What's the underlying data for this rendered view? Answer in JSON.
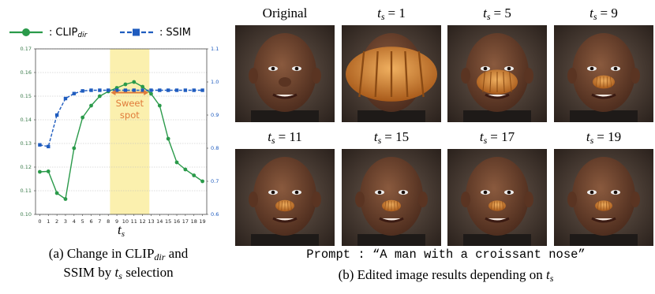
{
  "chart_data": {
    "type": "line",
    "x": [
      0,
      1,
      2,
      3,
      4,
      5,
      6,
      7,
      8,
      9,
      10,
      11,
      12,
      13,
      14,
      15,
      16,
      17,
      18,
      19
    ],
    "xlim": [
      -0.5,
      19.5
    ],
    "xticks": [
      0,
      1,
      2,
      3,
      4,
      5,
      6,
      7,
      8,
      9,
      10,
      11,
      12,
      13,
      14,
      15,
      16,
      17,
      18,
      19
    ],
    "x_label": "t",
    "x_label_subscript": "s",
    "ylim": [
      0.1,
      0.17
    ],
    "yticks": [
      {
        "value": 0.1,
        "label": "0.10"
      },
      0.11,
      0.12,
      0.13,
      0.14,
      0.15,
      0.16,
      0.17
    ],
    "y2lim": [
      0.6,
      1.1
    ],
    "y2ticks": [
      0.6,
      0.7,
      0.8,
      0.9,
      {
        "value": 1.0,
        "label": "1.0"
      },
      1.1
    ],
    "grid": true,
    "legend_prefix": ":",
    "series": [
      {
        "name": "CLIP",
        "name_subscript": "dir",
        "color": "#2a9a4a",
        "marker": "circle",
        "dashed": false,
        "values": [
          0.118,
          0.1182,
          0.109,
          0.1065,
          0.128,
          0.141,
          0.146,
          0.15,
          0.152,
          0.1535,
          0.155,
          0.156,
          0.154,
          0.151,
          0.146,
          0.132,
          0.122,
          0.119,
          0.1165,
          0.114
        ]
      },
      {
        "name": "SSIM",
        "color": "#1f5cbf",
        "marker": "square",
        "dashed": true,
        "axis": "y2",
        "values": [
          0.81,
          0.805,
          0.9,
          0.95,
          0.965,
          0.973,
          0.975,
          0.975,
          0.975,
          0.975,
          0.975,
          0.975,
          0.975,
          0.975,
          0.975,
          0.975,
          0.975,
          0.975,
          0.975,
          0.975
        ]
      }
    ],
    "highlight": {
      "x": [
        8.2,
        12.8
      ],
      "color": "#fbf0ae"
    },
    "annotation": {
      "lines": [
        "Sweet",
        "spot"
      ],
      "x": [
        8.3,
        12.7
      ],
      "y": 0.1515,
      "color": "#e07b3a"
    },
    "caption": {
      "prefix": "(a)   Change in ",
      "name": "CLIP",
      "subscript": "dir",
      "middle": " and",
      "line2_prefix": "SSIM by ",
      "var": "t",
      "var_subscript": "s",
      "line2_suffix": " selection"
    }
  },
  "images": [
    {
      "label": "Original"
    },
    {
      "var": "t",
      "sub": "s",
      "eq": "= 1"
    },
    {
      "var": "t",
      "sub": "s",
      "eq": "= 5"
    },
    {
      "var": "t",
      "sub": "s",
      "eq": "= 9"
    },
    {
      "var": "t",
      "sub": "s",
      "eq": "= 11"
    },
    {
      "var": "t",
      "sub": "s",
      "eq": "= 15"
    },
    {
      "var": "t",
      "sub": "s",
      "eq": "= 17"
    },
    {
      "var": "t",
      "sub": "s",
      "eq": "= 19"
    }
  ],
  "prompt": "Prompt : “A man with a croissant nose”",
  "caption_b": {
    "text": "(b) Edited image results depending on ",
    "var": "t",
    "sub": "s"
  }
}
